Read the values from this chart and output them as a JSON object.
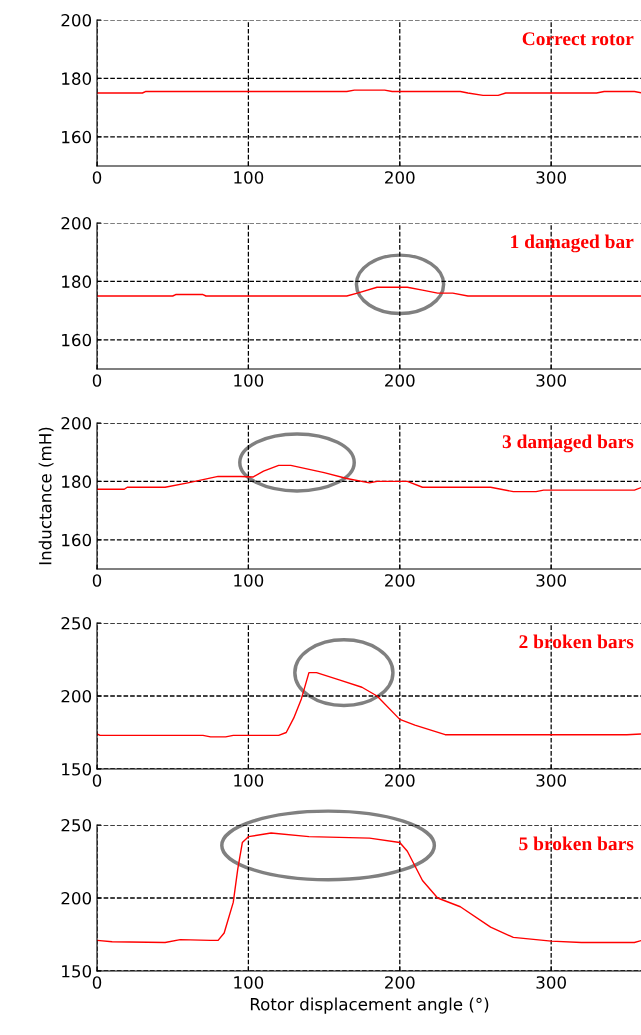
{
  "chart_data": [
    {
      "type": "line",
      "title": "Correct rotor",
      "xlim": [
        0,
        360
      ],
      "xticks": [
        0,
        100,
        200,
        300
      ],
      "ylim": [
        150,
        200
      ],
      "yticks": [
        160,
        180,
        200
      ],
      "grid": true,
      "legend": false,
      "series": [
        {
          "color": "#ff0000",
          "x": [
            0,
            30,
            32,
            165,
            170,
            190,
            195,
            240,
            245,
            255,
            265,
            270,
            330,
            335,
            355,
            360
          ],
          "values": [
            175,
            175,
            175.5,
            175.5,
            176,
            176,
            175.5,
            175.5,
            175,
            174.2,
            174.2,
            175,
            175,
            175.5,
            175.5,
            175
          ]
        }
      ]
    },
    {
      "type": "line",
      "title": "1 damaged bar",
      "xlim": [
        0,
        360
      ],
      "xticks": [
        0,
        100,
        200,
        300
      ],
      "ylim": [
        150,
        200
      ],
      "yticks": [
        160,
        180,
        200
      ],
      "grid": true,
      "legend": false,
      "series": [
        {
          "color": "#ff0000",
          "x": [
            0,
            50,
            52,
            70,
            72,
            165,
            172,
            185,
            205,
            215,
            225,
            235,
            245,
            360
          ],
          "values": [
            175,
            175,
            175.5,
            175.5,
            175,
            175,
            176,
            178,
            178,
            177,
            176,
            176,
            175,
            175
          ]
        }
      ]
    },
    {
      "type": "line",
      "title": "3 damaged bars",
      "ylabel": "Inductance (mH)",
      "xlim": [
        0,
        360
      ],
      "xticks": [
        0,
        100,
        200,
        300
      ],
      "ylim": [
        150,
        200
      ],
      "yticks": [
        160,
        180,
        200
      ],
      "grid": true,
      "legend": false,
      "series": [
        {
          "color": "#ff0000",
          "x": [
            0,
            18,
            20,
            45,
            60,
            80,
            95,
            103,
            110,
            120,
            128,
            150,
            165,
            180,
            185,
            205,
            215,
            260,
            275,
            290,
            295,
            355,
            360
          ],
          "values": [
            177.3,
            177.3,
            178,
            178,
            179.5,
            181.7,
            181.7,
            181.5,
            183.5,
            185.5,
            185.5,
            183,
            181,
            179.5,
            180,
            180,
            178,
            178,
            176.5,
            176.5,
            177,
            177,
            178
          ]
        }
      ]
    },
    {
      "type": "line",
      "title": "2 broken bars",
      "xlim": [
        0,
        360
      ],
      "xticks": [
        0,
        100,
        200,
        300
      ],
      "ylim": [
        150,
        250
      ],
      "yticks": [
        150,
        200,
        250
      ],
      "grid": true,
      "legend": false,
      "series": [
        {
          "color": "#ff0000",
          "x": [
            0,
            2,
            70,
            75,
            85,
            90,
            120,
            125,
            130,
            135,
            140,
            145,
            160,
            175,
            185,
            200,
            210,
            230,
            350,
            360
          ],
          "values": [
            174,
            173,
            173,
            172,
            172,
            173,
            173,
            175,
            185,
            198,
            216,
            216,
            211,
            206,
            200,
            184,
            180,
            173.5,
            173.5,
            174
          ]
        }
      ]
    },
    {
      "type": "line",
      "title": "5 broken bars",
      "xlabel": "Rotor displacement angle (°)",
      "xlim": [
        0,
        360
      ],
      "xticks": [
        0,
        100,
        200,
        300
      ],
      "ylim": [
        150,
        250
      ],
      "yticks": [
        150,
        200,
        250
      ],
      "grid": true,
      "legend": false,
      "series": [
        {
          "color": "#ff0000",
          "x": [
            0,
            10,
            45,
            55,
            75,
            80,
            84,
            90,
            93,
            96,
            100,
            115,
            140,
            180,
            200,
            205,
            215,
            225,
            240,
            260,
            275,
            300,
            320,
            355,
            360
          ],
          "values": [
            171,
            170,
            169.5,
            171.5,
            171,
            171,
            176,
            197,
            220,
            238,
            242,
            244.5,
            242,
            241,
            238,
            232,
            212,
            200,
            194,
            180,
            173,
            170.5,
            169.5,
            169.5,
            171
          ]
        }
      ]
    }
  ]
}
